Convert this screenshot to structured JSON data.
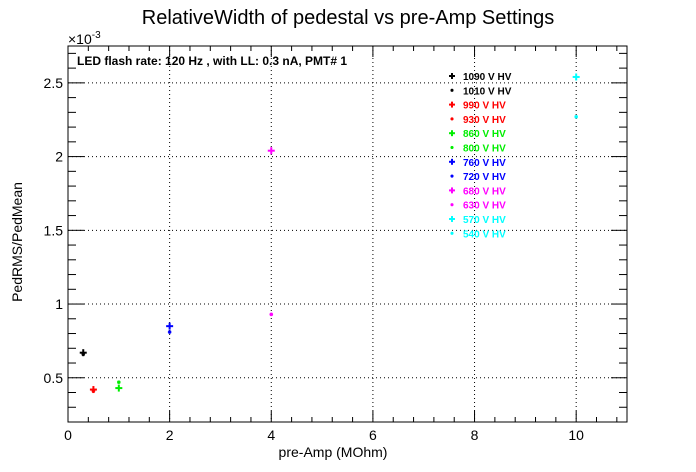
{
  "chart_data": {
    "type": "scatter",
    "title": "RelativeWidth of pedestal vs pre-Amp Settings",
    "xlabel": "pre-Amp (MOhm)",
    "ylabel": "PedRMS/PedMean",
    "y_exponent_label": "×10",
    "y_exponent_power": "-3",
    "annotation": "LED flash rate: 120 Hz , with LL: 0.3 nA, PMT# 1",
    "xlim": [
      0,
      11
    ],
    "ylim": [
      0.2,
      2.75
    ],
    "x_ticks": [
      0,
      2,
      4,
      6,
      8,
      10
    ],
    "x_tick_labels": [
      "0",
      "2",
      "4",
      "6",
      "8",
      "10"
    ],
    "y_ticks": [
      0.5,
      1,
      1.5,
      2,
      2.5
    ],
    "y_tick_labels": [
      "0.5",
      "1",
      "1.5",
      "2",
      "2.5"
    ],
    "grid": true,
    "legend_position": "top-right",
    "series": [
      {
        "name": "1090 V HV",
        "color": "#000000",
        "marker": "plus",
        "points": [
          [
            0.3,
            0.67
          ]
        ]
      },
      {
        "name": "1010 V HV",
        "color": "#000000",
        "marker": "star",
        "points": [
          [
            0.3,
            0.66
          ]
        ]
      },
      {
        "name": "990 V HV",
        "color": "#ff0000",
        "marker": "plus",
        "points": [
          [
            0.5,
            0.42
          ]
        ]
      },
      {
        "name": "930 V HV",
        "color": "#ff0000",
        "marker": "star",
        "points": [
          [
            0.5,
            0.41
          ]
        ]
      },
      {
        "name": "860 V HV",
        "color": "#00ee00",
        "marker": "plus",
        "points": [
          [
            1,
            0.43
          ]
        ]
      },
      {
        "name": "800 V HV",
        "color": "#00ee00",
        "marker": "star",
        "points": [
          [
            1,
            0.47
          ]
        ]
      },
      {
        "name": "760 V HV",
        "color": "#0000ff",
        "marker": "plus",
        "points": [
          [
            2,
            0.85
          ]
        ]
      },
      {
        "name": "720 V HV",
        "color": "#0000ff",
        "marker": "star",
        "points": [
          [
            2,
            0.81
          ]
        ]
      },
      {
        "name": "680 V HV",
        "color": "#ff00ff",
        "marker": "plus",
        "points": [
          [
            4,
            2.04
          ]
        ]
      },
      {
        "name": "630 V HV",
        "color": "#ff00ff",
        "marker": "star",
        "points": [
          [
            4,
            0.93
          ]
        ]
      },
      {
        "name": "570 V HV",
        "color": "#00ffff",
        "marker": "plus",
        "points": [
          [
            10,
            2.54
          ]
        ]
      },
      {
        "name": "540 V HV",
        "color": "#00ffff",
        "marker": "star",
        "points": [
          [
            10,
            2.27
          ]
        ]
      }
    ]
  }
}
